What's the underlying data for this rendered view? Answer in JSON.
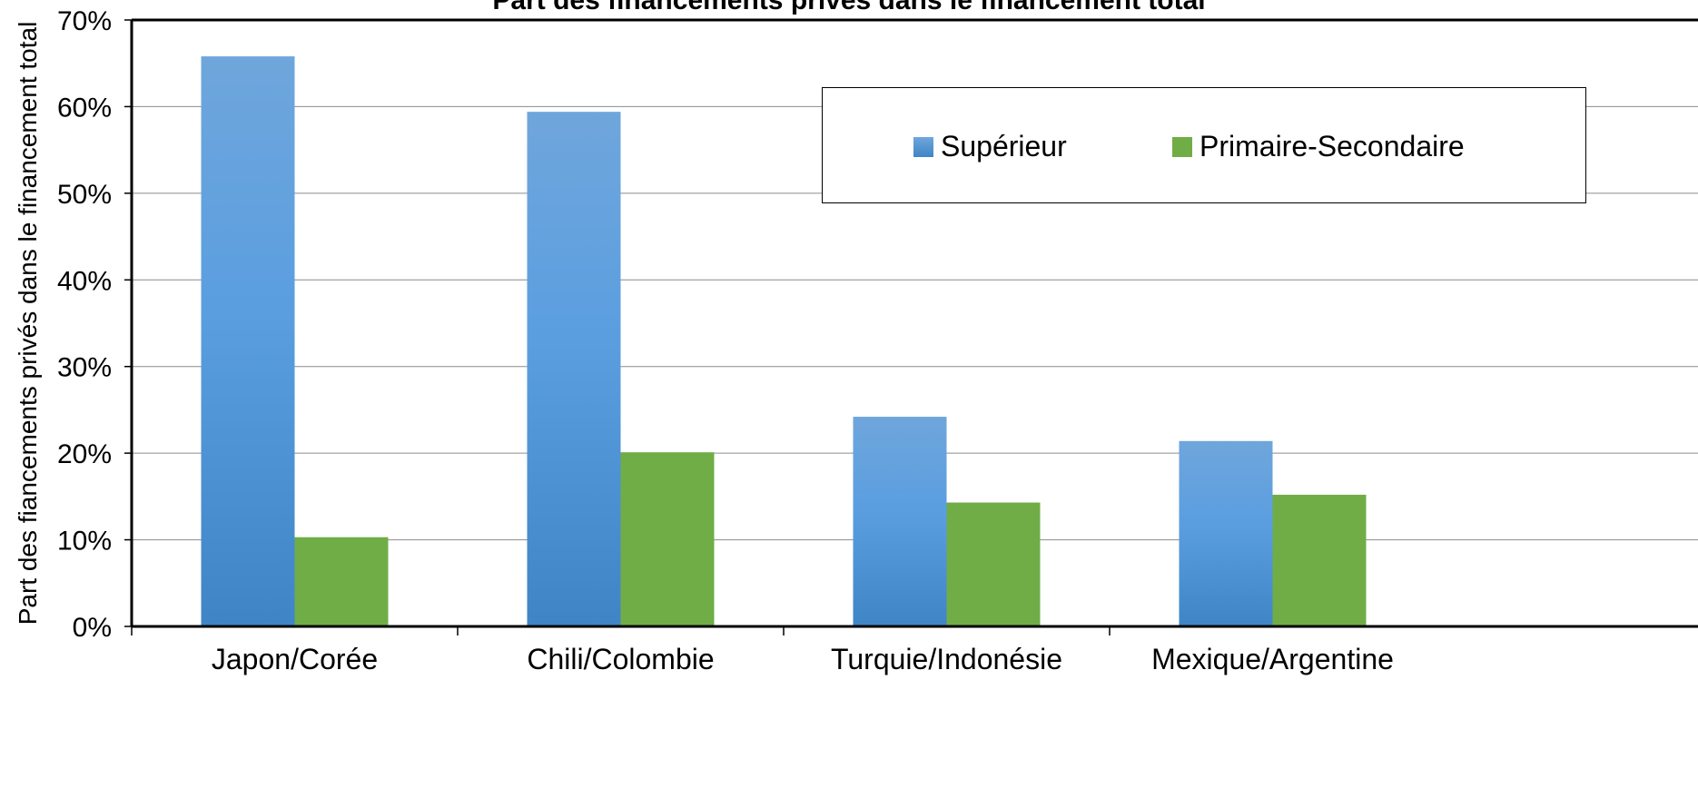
{
  "chart_data": {
    "type": "bar",
    "title": "Part des financements privés dans le financement total",
    "ylabel": "Part des fiancements privés dans le financement total",
    "xlabel": "",
    "ylim": [
      0,
      70
    ],
    "y_ticks": [
      "0%",
      "10%",
      "20%",
      "30%",
      "40%",
      "50%",
      "60%",
      "70%"
    ],
    "categories": [
      "Japon/Corée",
      "Chili/Colombie",
      "Turquie/Indonésie",
      "Mexique/Argentine"
    ],
    "series": [
      {
        "name": "Supérieur",
        "values": [
          65.8,
          59.4,
          24.2,
          21.4
        ],
        "color": "#4a8fd2"
      },
      {
        "name": "Primaire-Secondaire",
        "values": [
          10.3,
          20.1,
          14.3,
          15.2
        ],
        "color": "#70ad47"
      }
    ],
    "grid": true,
    "legend_position": "top-right"
  }
}
